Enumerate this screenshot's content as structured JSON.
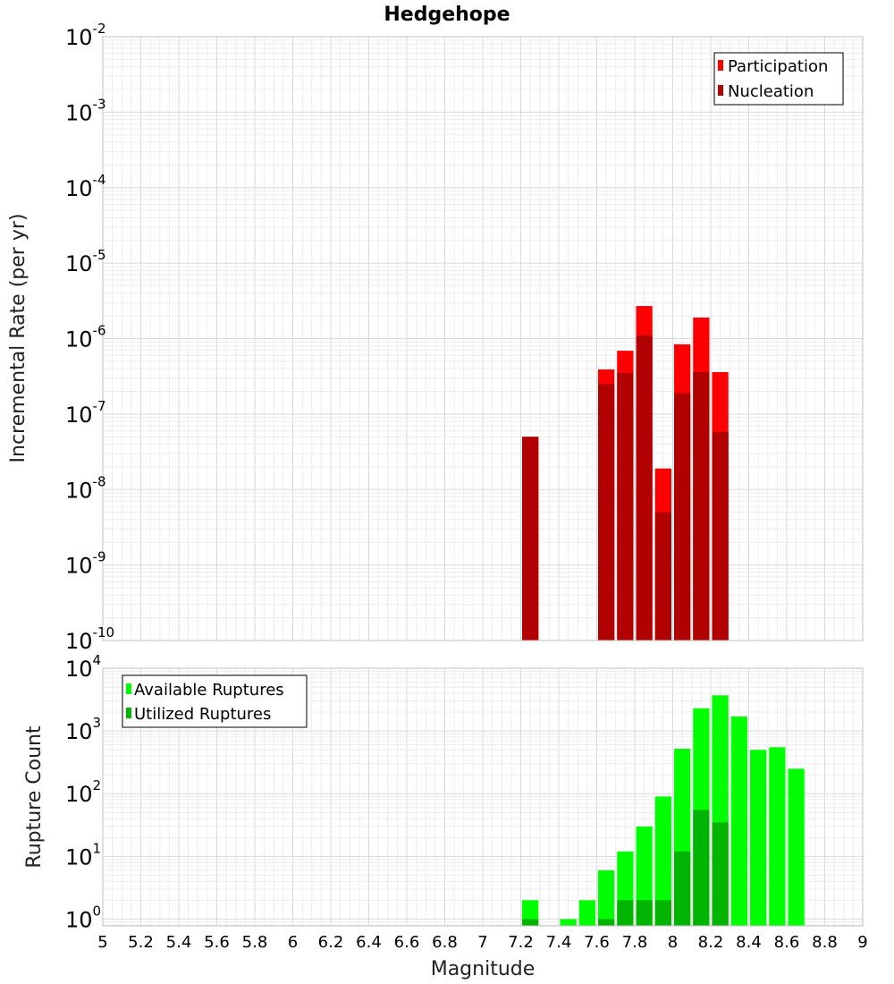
{
  "chart_data": [
    {
      "type": "bar",
      "title": "Hedgehope",
      "ylabel": "Incremental Rate (per yr)",
      "xlabel": "",
      "xlim": [
        5,
        9
      ],
      "ylim": [
        1e-10,
        0.01
      ],
      "yscale": "log",
      "grid": true,
      "legend_position": "top-right",
      "bin_width": 0.1,
      "x_ticks": [
        "5",
        "5.2",
        "5.4",
        "5.6",
        "5.8",
        "6",
        "6.2",
        "6.4",
        "6.6",
        "6.8",
        "7",
        "7.2",
        "7.4",
        "7.6",
        "7.8",
        "8",
        "8.2",
        "8.4",
        "8.6",
        "8.8",
        "9"
      ],
      "y_ticks": [
        {
          "base": "10",
          "exp": "-2"
        },
        {
          "base": "10",
          "exp": "-3"
        },
        {
          "base": "10",
          "exp": "-4"
        },
        {
          "base": "10",
          "exp": "-5"
        },
        {
          "base": "10",
          "exp": "-6"
        },
        {
          "base": "10",
          "exp": "-7"
        },
        {
          "base": "10",
          "exp": "-8"
        },
        {
          "base": "10",
          "exp": "-9"
        },
        {
          "base": "10",
          "exp": "-10"
        }
      ],
      "series": [
        {
          "name": "Participation",
          "color": "#ff0000",
          "x": [
            7.25,
            7.65,
            7.75,
            7.85,
            7.95,
            8.05,
            8.15,
            8.25
          ],
          "values": [
            5e-08,
            3.9e-07,
            6.9e-07,
            2.7e-06,
            1.9e-08,
            8.4e-07,
            1.9e-06,
            3.6e-07
          ]
        },
        {
          "name": "Nucleation",
          "color": "#b00000",
          "x": [
            7.25,
            7.65,
            7.75,
            7.85,
            7.95,
            8.05,
            8.15,
            8.25
          ],
          "values": [
            5e-08,
            2.5e-07,
            3.5e-07,
            1.1e-06,
            5e-09,
            1.9e-07,
            3.6e-07,
            5.8e-08
          ]
        }
      ]
    },
    {
      "type": "bar",
      "ylabel": "Rupture Count",
      "xlabel": "Magnitude",
      "xlim": [
        5,
        9
      ],
      "ylim": [
        0.78,
        10000
      ],
      "yscale": "log",
      "grid": true,
      "legend_position": "top-left",
      "bin_width": 0.1,
      "x_ticks": [
        "5",
        "5.2",
        "5.4",
        "5.6",
        "5.8",
        "6",
        "6.2",
        "6.4",
        "6.6",
        "6.8",
        "7",
        "7.2",
        "7.4",
        "7.6",
        "7.8",
        "8",
        "8.2",
        "8.4",
        "8.6",
        "8.8",
        "9"
      ],
      "y_ticks": [
        {
          "base": "10",
          "exp": "4"
        },
        {
          "base": "10",
          "exp": "3"
        },
        {
          "base": "10",
          "exp": "2"
        },
        {
          "base": "10",
          "exp": "1"
        },
        {
          "base": "10",
          "exp": "0"
        }
      ],
      "series": [
        {
          "name": "Available Ruptures",
          "color": "#00ff00",
          "x": [
            7.25,
            7.45,
            7.55,
            7.65,
            7.75,
            7.85,
            7.95,
            8.05,
            8.15,
            8.25,
            8.35,
            8.45,
            8.55,
            8.65
          ],
          "values": [
            2,
            1,
            2,
            6,
            12,
            30,
            90,
            520,
            2300,
            3700,
            1700,
            500,
            550,
            250
          ]
        },
        {
          "name": "Utilized Ruptures",
          "color": "#00b400",
          "x": [
            7.25,
            7.65,
            7.75,
            7.85,
            7.95,
            8.05,
            8.15,
            8.25
          ],
          "values": [
            1,
            1,
            2,
            2,
            2,
            12,
            55,
            35
          ]
        }
      ]
    }
  ]
}
